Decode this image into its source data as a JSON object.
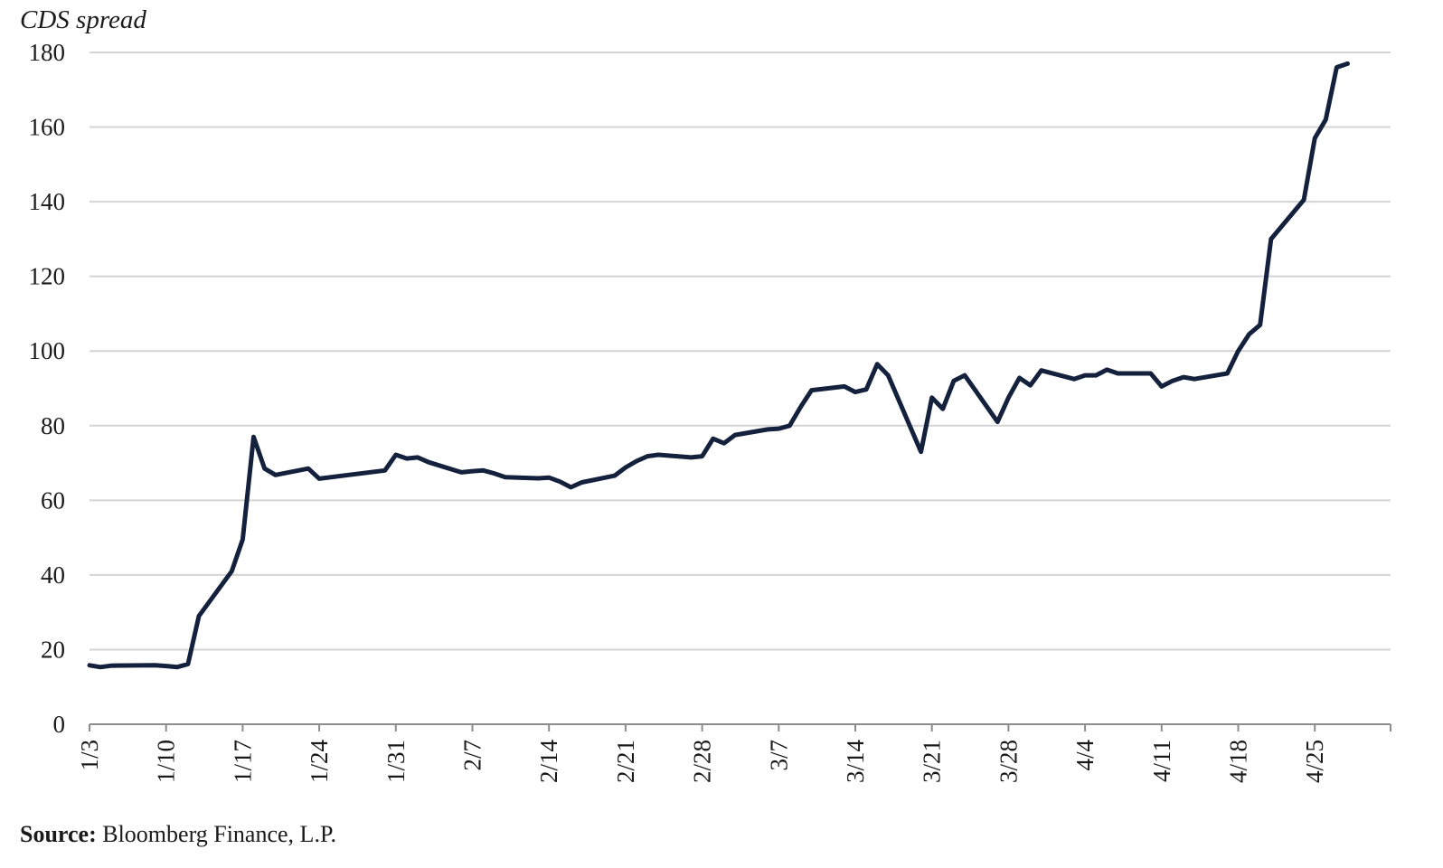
{
  "chart_data": {
    "type": "line",
    "ylabel": "CDS spread",
    "xlabel": "",
    "ylim": [
      0,
      180
    ],
    "yticks": [
      0,
      20,
      40,
      60,
      80,
      100,
      120,
      140,
      160,
      180
    ],
    "xticks": [
      "1/3",
      "1/10",
      "1/17",
      "1/24",
      "1/31",
      "2/7",
      "2/14",
      "2/21",
      "2/28",
      "3/7",
      "3/14",
      "3/21",
      "3/28",
      "4/4",
      "4/11",
      "4/18",
      "4/25"
    ],
    "grid": "horizontal",
    "line_color": "#14213d",
    "x": [
      "1/3",
      "1/4",
      "1/5",
      "1/9",
      "1/10",
      "1/11",
      "1/12",
      "1/13",
      "1/16",
      "1/17",
      "1/18",
      "1/19",
      "1/20",
      "1/23",
      "1/24",
      "1/30",
      "1/31",
      "2/1",
      "2/2",
      "2/3",
      "2/6",
      "2/7",
      "2/8",
      "2/9",
      "2/10",
      "2/13",
      "2/14",
      "2/15",
      "2/16",
      "2/17",
      "2/20",
      "2/21",
      "2/22",
      "2/23",
      "2/24",
      "2/27",
      "2/28",
      "3/1",
      "3/2",
      "3/3",
      "3/6",
      "3/7",
      "3/8",
      "3/9",
      "3/10",
      "3/13",
      "3/14",
      "3/15",
      "3/16",
      "3/17",
      "3/20",
      "3/21",
      "3/22",
      "3/23",
      "3/24",
      "3/27",
      "3/28",
      "3/29",
      "3/30",
      "3/31",
      "4/3",
      "4/4",
      "4/5",
      "4/6",
      "4/7",
      "4/10",
      "4/11",
      "4/12",
      "4/13",
      "4/14",
      "4/17",
      "4/18",
      "4/19",
      "4/20",
      "4/21",
      "4/24",
      "4/25",
      "4/26",
      "4/27",
      "4/28"
    ],
    "series": [
      {
        "values": [
          15.8,
          15.3,
          15.7,
          15.8,
          15.6,
          15.3,
          16.1,
          29,
          41,
          49.5,
          77,
          68.5,
          66.8,
          68.5,
          65.8,
          68,
          72.2,
          71.2,
          71.5,
          70.2,
          67.5,
          67.8,
          68,
          67.2,
          66.2,
          65.9,
          66.1,
          65,
          63.5,
          64.8,
          66.6,
          68.8,
          70.5,
          71.8,
          72.2,
          71.5,
          71.8,
          76.5,
          75.3,
          77.5,
          79,
          79.2,
          80,
          85,
          89.5,
          90.5,
          89,
          89.7,
          96.5,
          93.5,
          73,
          87.5,
          84.5,
          92,
          93.5,
          81,
          87.5,
          92.8,
          90.8,
          94.8,
          92.5,
          93.5,
          93.5,
          95,
          94,
          94,
          90.5,
          92,
          93,
          92.5,
          94,
          100,
          104.5,
          107,
          130,
          140.5,
          157,
          162,
          176,
          177
        ]
      }
    ]
  },
  "footer": {
    "source_label": "Source:",
    "source_text": " Bloomberg Finance, L.P."
  }
}
